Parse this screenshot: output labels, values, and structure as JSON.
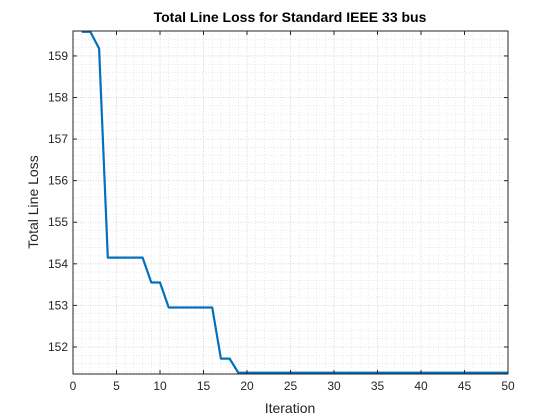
{
  "chart_data": {
    "type": "line",
    "title": "Total Line Loss for Standard IEEE  33 bus",
    "xlabel": "Iteration",
    "ylabel": "Total Line Loss",
    "xlim": [
      0,
      50
    ],
    "ylim": [
      151.35,
      159.6
    ],
    "xticks": [
      0,
      5,
      10,
      15,
      20,
      25,
      30,
      35,
      40,
      45,
      50
    ],
    "yticks": [
      152,
      153,
      154,
      155,
      156,
      157,
      158,
      159
    ],
    "grid": true,
    "minor_grid": true,
    "line_color": "#0072BD",
    "axis_color": "#262626",
    "grid_color": "#d9d9d9",
    "series": [
      {
        "x": [
          1,
          2,
          3,
          4,
          5,
          6,
          7,
          8,
          9,
          10,
          11,
          12,
          13,
          14,
          15,
          16,
          17,
          18,
          19,
          20,
          21,
          22,
          23,
          24,
          25,
          26,
          27,
          28,
          29,
          30,
          31,
          32,
          33,
          34,
          35,
          36,
          37,
          38,
          39,
          40,
          41,
          42,
          43,
          44,
          45,
          46,
          47,
          48,
          49,
          50
        ],
        "values": [
          159.58,
          159.58,
          159.18,
          154.15,
          154.15,
          154.15,
          154.15,
          154.15,
          153.55,
          153.55,
          152.95,
          152.95,
          152.95,
          152.95,
          152.95,
          152.95,
          151.72,
          151.72,
          151.38,
          151.38,
          151.38,
          151.38,
          151.38,
          151.38,
          151.38,
          151.38,
          151.38,
          151.38,
          151.38,
          151.38,
          151.38,
          151.38,
          151.38,
          151.38,
          151.38,
          151.38,
          151.38,
          151.38,
          151.38,
          151.38,
          151.38,
          151.38,
          151.38,
          151.38,
          151.38,
          151.38,
          151.38,
          151.38,
          151.38,
          151.38
        ]
      }
    ]
  }
}
